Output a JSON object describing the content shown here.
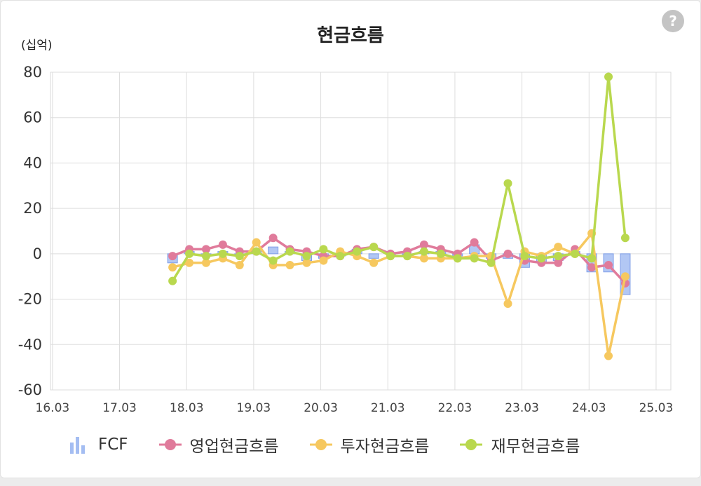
{
  "header": {
    "title": "현금흐름",
    "unit": "(십억)",
    "help": "?"
  },
  "chart_data": {
    "type": "line",
    "title": "현금흐름",
    "ylabel": "(십억)",
    "xlabel": "",
    "ylim": [
      -60,
      80
    ],
    "xlim": [
      16.0,
      25.25
    ],
    "grid": true,
    "legend_position": "bottom",
    "y_ticks": [
      80,
      60,
      40,
      20,
      0,
      -20,
      -40,
      -60
    ],
    "x_ticks": [
      "16.03",
      "17.03",
      "18.03",
      "19.03",
      "20.03",
      "21.03",
      "22.03",
      "23.03",
      "24.03",
      "25.03"
    ],
    "x": [
      17.82,
      18.07,
      18.32,
      18.57,
      18.82,
      19.07,
      19.32,
      19.57,
      19.82,
      20.07,
      20.32,
      20.57,
      20.82,
      21.07,
      21.32,
      21.57,
      21.82,
      22.07,
      22.32,
      22.57,
      22.82,
      23.07,
      23.32,
      23.57,
      23.82,
      24.07,
      24.32,
      24.57
    ],
    "series": [
      {
        "name": "FCF",
        "kind": "bar",
        "color": "#a4bdf2",
        "values": [
          -4,
          1,
          -1,
          1,
          0,
          2,
          3,
          1,
          -3,
          -2,
          -1,
          2,
          -2,
          0,
          0,
          1,
          1,
          -1,
          4,
          -2,
          -2,
          -6,
          -4,
          -3,
          1,
          -8,
          -8,
          -18
        ]
      },
      {
        "name": "영업현금흐름",
        "kind": "line",
        "color": "#e07b9b",
        "values": [
          -1,
          2,
          2,
          4,
          1,
          1,
          7,
          2,
          1,
          -1,
          -1,
          2,
          3,
          0,
          1,
          4,
          2,
          0,
          5,
          -3,
          0,
          -3,
          -4,
          -4,
          2,
          -6,
          -5,
          -13
        ]
      },
      {
        "name": "투자현금흐름",
        "kind": "line",
        "color": "#f6c85f",
        "values": [
          -6,
          -4,
          -4,
          -2,
          -5,
          5,
          -5,
          -5,
          -4,
          -3,
          1,
          -1,
          -4,
          -1,
          -1,
          -2,
          -2,
          -2,
          -1,
          -1,
          -22,
          1,
          -1,
          3,
          0,
          9,
          -45,
          -10
        ]
      },
      {
        "name": "재무현금흐름",
        "kind": "line",
        "color": "#b9d84e",
        "values": [
          -12,
          0,
          -1,
          0,
          -1,
          1,
          -3,
          1,
          -1,
          2,
          -1,
          1,
          3,
          -1,
          -1,
          1,
          0,
          -2,
          -2,
          -4,
          31,
          -1,
          -2,
          -1,
          0,
          -2,
          78,
          7
        ]
      }
    ]
  },
  "legend": [
    {
      "label": "FCF",
      "icon": "bar-chart-icon",
      "color": "#a4bdf2"
    },
    {
      "label": "영업현금흐름",
      "icon": "line-marker-icon",
      "color": "#e07b9b"
    },
    {
      "label": "투자현금흐름",
      "icon": "line-marker-icon",
      "color": "#f6c85f"
    },
    {
      "label": "재무현금흐름",
      "icon": "line-marker-icon",
      "color": "#b9d84e"
    }
  ]
}
